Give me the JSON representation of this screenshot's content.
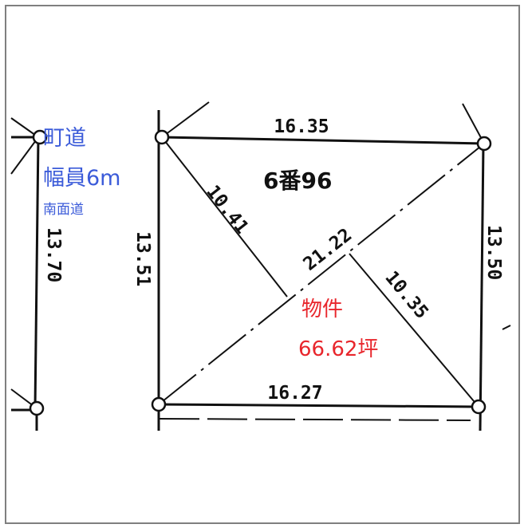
{
  "road": {
    "name": "町道",
    "width": "幅員6m",
    "note": "南面道"
  },
  "property": {
    "label": "物件",
    "area": "66.62坪",
    "lot_number": "6番96"
  },
  "dimensions": {
    "top": "16.35",
    "bottom": "16.27",
    "left_inner": "13.51",
    "left_outer": "13.70",
    "right": "13.50",
    "diag_upper_left": "10.41",
    "diagonal": "21.22",
    "diag_lower_right": "10.35"
  },
  "colors": {
    "road_text": "#3b5bd9",
    "property_text": "#e8262c",
    "frame": "#7f7f7f"
  }
}
